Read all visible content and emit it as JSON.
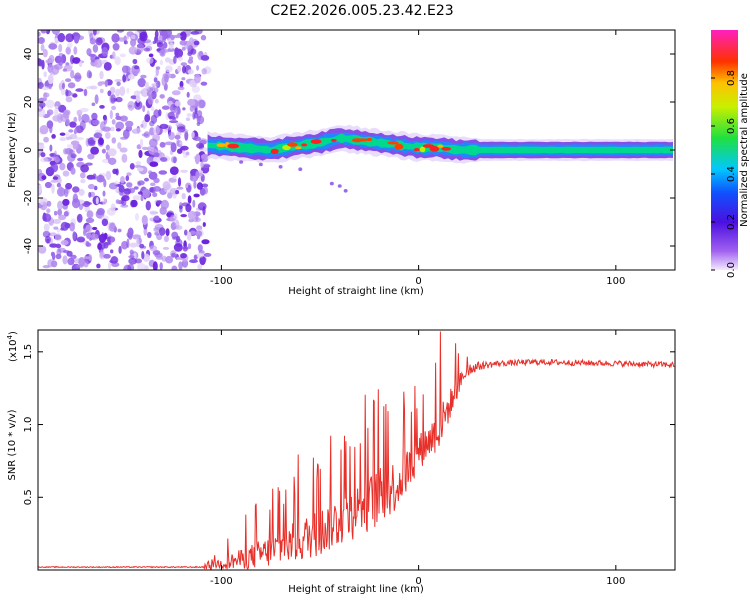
{
  "title": "C2E2.2026.005.23.42.E23",
  "colors": {
    "line": "#e8302a",
    "axis": "#000000",
    "noise": "#7a2ee0"
  },
  "chart_data": [
    {
      "type": "heatmap",
      "xlabel": "Height of straight line (km)",
      "ylabel": "Frequency (Hz)",
      "xlim": [
        -193,
        130
      ],
      "ylim": [
        -50,
        50
      ],
      "xticks": [
        -100,
        0,
        100
      ],
      "yticks": [
        -40,
        -20,
        0,
        20,
        40
      ],
      "noise_region_x": [
        -193,
        -107
      ],
      "ridge": {
        "x": [
          -107,
          -90,
          -75,
          -60,
          -50,
          -40,
          -30,
          -20,
          -10,
          0,
          10,
          20,
          30,
          60,
          100,
          130
        ],
        "freq": [
          2,
          1,
          0,
          2,
          3,
          5,
          4,
          3,
          2,
          1,
          1,
          0,
          0,
          0,
          0,
          0
        ]
      },
      "colorbar": {
        "label": "Normalized spectral amplitude",
        "ticks": [
          0.0,
          0.2,
          0.4,
          0.6,
          0.8
        ],
        "range": [
          0,
          1
        ]
      }
    },
    {
      "type": "line",
      "xlabel": "Height of straight line (km)",
      "ylabel": "SNR (10 * v/v)",
      "multiplier_label": "(x10",
      "multiplier_exp": "4",
      "xlim": [
        -193,
        130
      ],
      "ylim": [
        0,
        1.65
      ],
      "xticks": [
        -100,
        0,
        100
      ],
      "yticks": [
        0.5,
        1.0,
        1.5
      ],
      "ytick_labels": [
        "0.5",
        "1.0",
        "1.5"
      ],
      "series": [
        {
          "name": "SNR",
          "envelope": {
            "x": [
              -193,
              -110,
              -100,
              -90,
              -80,
              -70,
              -60,
              -50,
              -40,
              -30,
              -20,
              -10,
              -5,
              0,
              5,
              10,
              15,
              20,
              25,
              30,
              35,
              40,
              60,
              100,
              130
            ],
            "base": [
              0.02,
              0.02,
              0.05,
              0.08,
              0.12,
              0.16,
              0.22,
              0.28,
              0.36,
              0.44,
              0.52,
              0.62,
              0.72,
              0.82,
              0.9,
              0.98,
              1.12,
              1.28,
              1.38,
              1.4,
              1.41,
              1.42,
              1.43,
              1.42,
              1.41
            ],
            "amp": [
              0.003,
              0.004,
              0.08,
              0.14,
              0.2,
              0.25,
              0.3,
              0.33,
              0.36,
              0.38,
              0.4,
              0.36,
              0.3,
              0.25,
              0.25,
              0.3,
              0.22,
              0.15,
              0.05,
              0.03,
              0.025,
              0.02,
              0.02,
              0.02,
              0.02
            ]
          },
          "peak": {
            "x": 11,
            "y": 1.64
          }
        }
      ]
    }
  ]
}
